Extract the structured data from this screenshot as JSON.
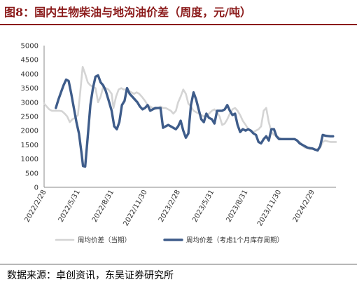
{
  "title": "图8：国内生物柴油与地沟油价差（周度，元/吨）",
  "source": "数据来源：卓创资讯，东吴证券研究所",
  "chart_data": {
    "type": "line",
    "ylim": [
      0,
      5000
    ],
    "yticks": [
      "5000",
      "4500",
      "4000",
      "3500",
      "3000",
      "2500",
      "2000",
      "1500",
      "1000",
      "500",
      "0"
    ],
    "xticks": [
      "2022/2/28",
      "2022/5/31",
      "2022/8/31",
      "2022/11/30",
      "2023/2/28",
      "2023/5/31",
      "2023/8/31",
      "2023/11/30",
      "2024/2/29"
    ],
    "x_start": "2022-02-28",
    "x_end": "2024-05-03",
    "series": [
      {
        "name": "周均价差（当期）",
        "color": "#d4d4d4",
        "points": [
          [
            "2022-02-28",
            2950
          ],
          [
            "2022-03-07",
            2850
          ],
          [
            "2022-03-14",
            2750
          ],
          [
            "2022-03-21",
            2700
          ],
          [
            "2022-03-28",
            2700
          ],
          [
            "2022-04-04",
            2700
          ],
          [
            "2022-04-11",
            2700
          ],
          [
            "2022-04-18",
            2680
          ],
          [
            "2022-04-25",
            2600
          ],
          [
            "2022-05-02",
            2500
          ],
          [
            "2022-05-09",
            2300
          ],
          [
            "2022-05-16",
            2400
          ],
          [
            "2022-05-23",
            2450
          ],
          [
            "2022-05-31",
            2550
          ],
          [
            "2022-06-06",
            3300
          ],
          [
            "2022-06-13",
            4250
          ],
          [
            "2022-06-20",
            4000
          ],
          [
            "2022-06-27",
            3700
          ],
          [
            "2022-07-04",
            3600
          ],
          [
            "2022-07-11",
            3550
          ],
          [
            "2022-07-18",
            3500
          ],
          [
            "2022-07-25",
            3000
          ],
          [
            "2022-08-01",
            3200
          ],
          [
            "2022-08-08",
            3550
          ],
          [
            "2022-08-15",
            3500
          ],
          [
            "2022-08-22",
            3450
          ],
          [
            "2022-08-31",
            3300
          ],
          [
            "2022-09-05",
            2800
          ],
          [
            "2022-09-12",
            3200
          ],
          [
            "2022-09-19",
            3450
          ],
          [
            "2022-09-26",
            3500
          ],
          [
            "2022-10-03",
            3450
          ],
          [
            "2022-10-10",
            3450
          ],
          [
            "2022-10-17",
            3400
          ],
          [
            "2022-10-24",
            3350
          ],
          [
            "2022-10-31",
            3300
          ],
          [
            "2022-11-07",
            3350
          ],
          [
            "2022-11-14",
            3300
          ],
          [
            "2022-11-21",
            3200
          ],
          [
            "2022-11-30",
            3050
          ],
          [
            "2022-12-07",
            2900
          ],
          [
            "2022-12-14",
            2850
          ],
          [
            "2022-12-21",
            2800
          ],
          [
            "2022-12-28",
            2750
          ],
          [
            "2023-01-04",
            2800
          ],
          [
            "2023-01-11",
            2850
          ],
          [
            "2023-01-18",
            2800
          ],
          [
            "2023-01-25",
            2800
          ],
          [
            "2023-02-01",
            2750
          ],
          [
            "2023-02-08",
            2700
          ],
          [
            "2023-02-15",
            2600
          ],
          [
            "2023-02-22",
            2700
          ],
          [
            "2023-02-28",
            3000
          ],
          [
            "2023-03-07",
            3200
          ],
          [
            "2023-03-14",
            3450
          ],
          [
            "2023-03-21",
            3300
          ],
          [
            "2023-03-28",
            2950
          ],
          [
            "2023-04-04",
            2850
          ],
          [
            "2023-04-11",
            2700
          ],
          [
            "2023-04-18",
            2650
          ],
          [
            "2023-04-25",
            2600
          ],
          [
            "2023-05-02",
            2550
          ],
          [
            "2023-05-09",
            2500
          ],
          [
            "2023-05-16",
            2550
          ],
          [
            "2023-05-23",
            2600
          ],
          [
            "2023-05-31",
            2700
          ],
          [
            "2023-06-07",
            2750
          ],
          [
            "2023-06-14",
            2650
          ],
          [
            "2023-06-21",
            2500
          ],
          [
            "2023-06-28",
            2200
          ],
          [
            "2023-07-05",
            2250
          ],
          [
            "2023-07-12",
            2400
          ],
          [
            "2023-07-19",
            2600
          ],
          [
            "2023-07-26",
            2750
          ],
          [
            "2023-08-02",
            2800
          ],
          [
            "2023-08-09",
            2700
          ],
          [
            "2023-08-16",
            2550
          ],
          [
            "2023-08-23",
            2350
          ],
          [
            "2023-08-31",
            2200
          ],
          [
            "2023-09-07",
            2050
          ],
          [
            "2023-09-14",
            2000
          ],
          [
            "2023-09-21",
            1950
          ],
          [
            "2023-09-28",
            2000
          ],
          [
            "2023-10-05",
            2050
          ],
          [
            "2023-10-12",
            2150
          ],
          [
            "2023-10-19",
            2700
          ],
          [
            "2023-10-26",
            2800
          ],
          [
            "2023-11-02",
            2300
          ],
          [
            "2023-11-09",
            1950
          ],
          [
            "2023-11-16",
            1850
          ],
          [
            "2023-11-23",
            1800
          ],
          [
            "2023-11-30",
            1750
          ],
          [
            "2023-12-07",
            1700
          ],
          [
            "2023-12-14",
            1700
          ],
          [
            "2023-12-21",
            1700
          ],
          [
            "2023-12-28",
            1700
          ],
          [
            "2024-01-04",
            1700
          ],
          [
            "2024-01-11",
            1700
          ],
          [
            "2024-01-18",
            1650
          ],
          [
            "2024-01-25",
            1600
          ],
          [
            "2024-02-01",
            1500
          ],
          [
            "2024-02-08",
            1400
          ],
          [
            "2024-02-15",
            1380
          ],
          [
            "2024-02-22",
            1350
          ],
          [
            "2024-02-29",
            1350
          ],
          [
            "2024-03-07",
            1330
          ],
          [
            "2024-03-14",
            1350
          ],
          [
            "2024-03-21",
            1400
          ],
          [
            "2024-03-28",
            1600
          ],
          [
            "2024-04-04",
            1650
          ],
          [
            "2024-04-11",
            1620
          ],
          [
            "2024-04-18",
            1600
          ],
          [
            "2024-04-25",
            1600
          ],
          [
            "2024-05-03",
            1600
          ]
        ]
      },
      {
        "name": "周均价差（考虑1个月库存周期）",
        "color": "#3e5c8a",
        "points": [
          [
            "2022-04-01",
            2800
          ],
          [
            "2022-04-08",
            3100
          ],
          [
            "2022-04-15",
            3350
          ],
          [
            "2022-04-22",
            3600
          ],
          [
            "2022-04-29",
            3800
          ],
          [
            "2022-05-06",
            3750
          ],
          [
            "2022-05-13",
            3300
          ],
          [
            "2022-05-20",
            2800
          ],
          [
            "2022-05-27",
            2300
          ],
          [
            "2022-06-03",
            1900
          ],
          [
            "2022-06-10",
            1200
          ],
          [
            "2022-06-14",
            750
          ],
          [
            "2022-06-20",
            730
          ],
          [
            "2022-06-27",
            1800
          ],
          [
            "2022-07-04",
            2900
          ],
          [
            "2022-07-11",
            3500
          ],
          [
            "2022-07-18",
            3900
          ],
          [
            "2022-07-25",
            3950
          ],
          [
            "2022-08-01",
            3700
          ],
          [
            "2022-08-08",
            3600
          ],
          [
            "2022-08-15",
            3400
          ],
          [
            "2022-08-22",
            3100
          ],
          [
            "2022-08-31",
            2700
          ],
          [
            "2022-09-07",
            2150
          ],
          [
            "2022-09-14",
            2050
          ],
          [
            "2022-09-21",
            2300
          ],
          [
            "2022-09-28",
            2900
          ],
          [
            "2022-10-05",
            3050
          ],
          [
            "2022-10-12",
            3500
          ],
          [
            "2022-10-19",
            3300
          ],
          [
            "2022-10-26",
            3200
          ],
          [
            "2022-11-02",
            3100
          ],
          [
            "2022-11-09",
            3000
          ],
          [
            "2022-11-16",
            2850
          ],
          [
            "2022-11-23",
            2750
          ],
          [
            "2022-11-30",
            2800
          ],
          [
            "2022-12-07",
            2900
          ],
          [
            "2022-12-14",
            2700
          ],
          [
            "2022-12-21",
            2750
          ],
          [
            "2022-12-28",
            2800
          ],
          [
            "2023-01-04",
            2800
          ],
          [
            "2023-01-11",
            2800
          ],
          [
            "2023-01-18",
            2100
          ],
          [
            "2023-01-25",
            2150
          ],
          [
            "2023-02-01",
            2200
          ],
          [
            "2023-02-08",
            2150
          ],
          [
            "2023-02-15",
            2100
          ],
          [
            "2023-02-22",
            2050
          ],
          [
            "2023-02-28",
            2150
          ],
          [
            "2023-03-07",
            2350
          ],
          [
            "2023-03-14",
            2000
          ],
          [
            "2023-03-21",
            1750
          ],
          [
            "2023-03-28",
            1900
          ],
          [
            "2023-04-04",
            2900
          ],
          [
            "2023-04-11",
            3350
          ],
          [
            "2023-04-18",
            3100
          ],
          [
            "2023-04-25",
            2750
          ],
          [
            "2023-05-02",
            2400
          ],
          [
            "2023-05-09",
            2300
          ],
          [
            "2023-05-16",
            2600
          ],
          [
            "2023-05-23",
            2450
          ],
          [
            "2023-05-31",
            2400
          ],
          [
            "2023-06-07",
            2250
          ],
          [
            "2023-06-14",
            2700
          ],
          [
            "2023-06-21",
            2700
          ],
          [
            "2023-06-28",
            2700
          ],
          [
            "2023-07-05",
            2750
          ],
          [
            "2023-07-12",
            2900
          ],
          [
            "2023-07-19",
            2700
          ],
          [
            "2023-07-26",
            2550
          ],
          [
            "2023-08-02",
            2600
          ],
          [
            "2023-08-09",
            2200
          ],
          [
            "2023-08-16",
            1950
          ],
          [
            "2023-08-23",
            2050
          ],
          [
            "2023-08-31",
            2000
          ],
          [
            "2023-09-07",
            2050
          ],
          [
            "2023-09-14",
            2000
          ],
          [
            "2023-09-21",
            1900
          ],
          [
            "2023-09-28",
            1850
          ],
          [
            "2023-10-05",
            1600
          ],
          [
            "2023-10-12",
            1550
          ],
          [
            "2023-10-19",
            1700
          ],
          [
            "2023-10-26",
            1800
          ],
          [
            "2023-11-02",
            1650
          ],
          [
            "2023-11-09",
            2050
          ],
          [
            "2023-11-16",
            2050
          ],
          [
            "2023-11-23",
            1800
          ],
          [
            "2023-11-30",
            1700
          ],
          [
            "2023-12-07",
            1700
          ],
          [
            "2023-12-14",
            1700
          ],
          [
            "2023-12-21",
            1700
          ],
          [
            "2023-12-28",
            1700
          ],
          [
            "2024-01-04",
            1700
          ],
          [
            "2024-01-11",
            1700
          ],
          [
            "2024-01-18",
            1650
          ],
          [
            "2024-01-25",
            1550
          ],
          [
            "2024-02-01",
            1500
          ],
          [
            "2024-02-08",
            1450
          ],
          [
            "2024-02-15",
            1400
          ],
          [
            "2024-02-22",
            1380
          ],
          [
            "2024-02-29",
            1370
          ],
          [
            "2024-03-07",
            1330
          ],
          [
            "2024-03-14",
            1300
          ],
          [
            "2024-03-21",
            1450
          ],
          [
            "2024-03-28",
            1850
          ],
          [
            "2024-04-04",
            1820
          ],
          [
            "2024-04-11",
            1810
          ],
          [
            "2024-04-18",
            1800
          ],
          [
            "2024-04-25",
            1800
          ]
        ]
      }
    ]
  }
}
